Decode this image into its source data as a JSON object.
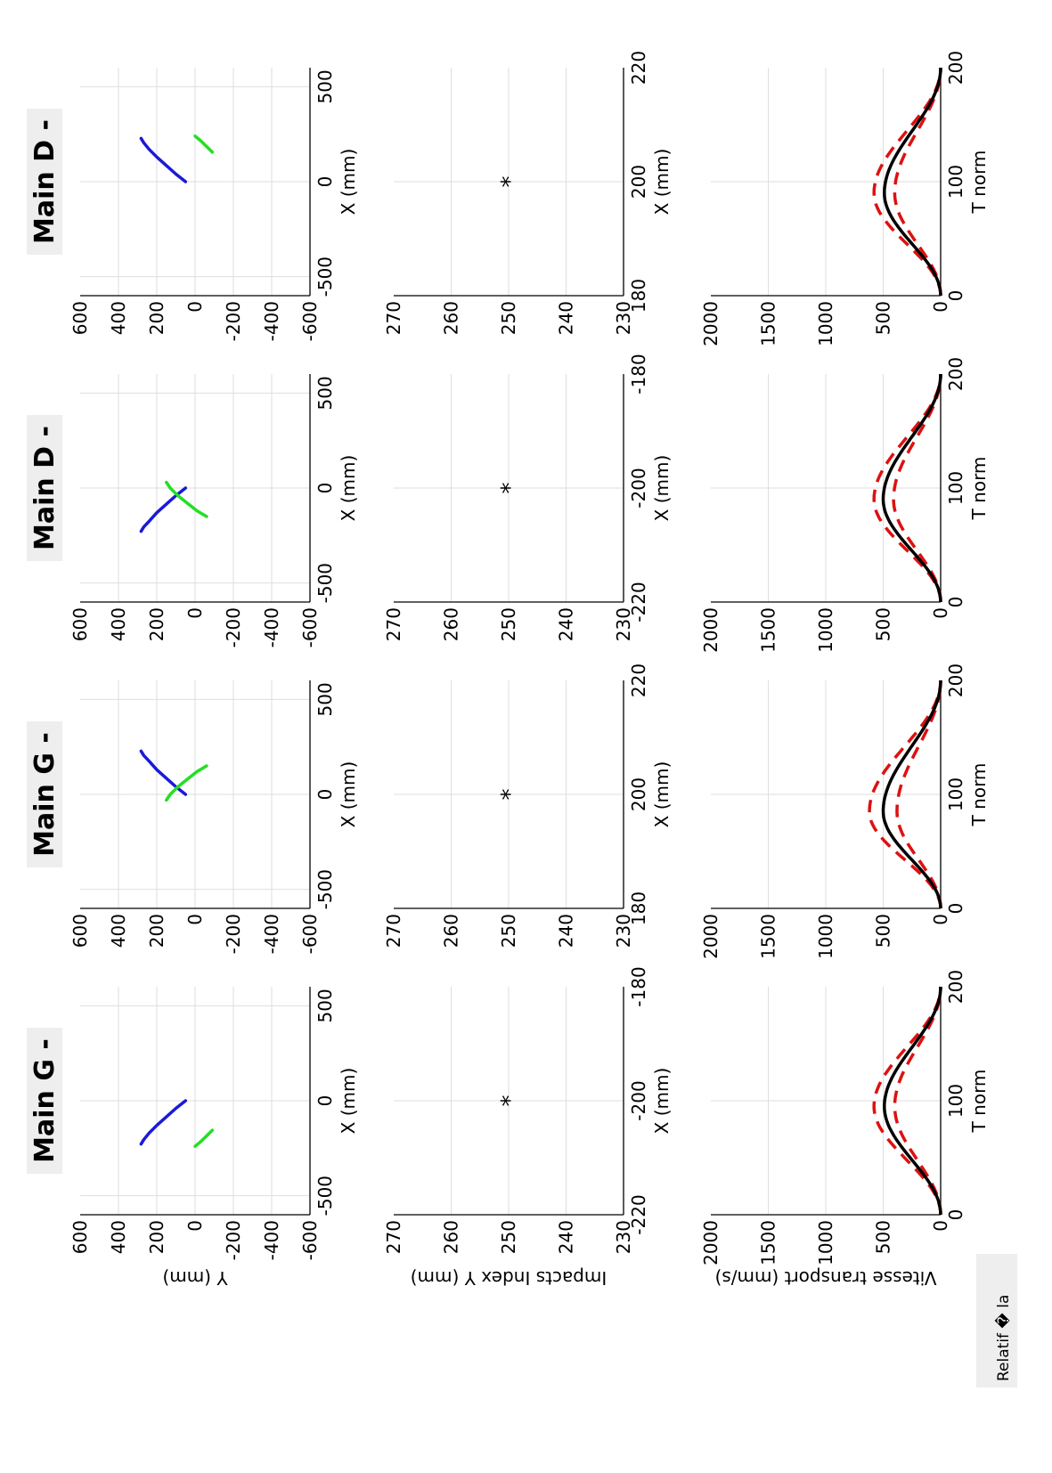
{
  "figure": {
    "columns": [
      {
        "title": "Main G -"
      },
      {
        "title": "Main G -"
      },
      {
        "title": "Main D -"
      },
      {
        "title": "Main D -"
      }
    ],
    "side_label": "Relatif � la"
  },
  "colors": {
    "blue": "#1a1ad6",
    "green": "#22e022",
    "red": "#dd1111",
    "black": "#000000",
    "grid": "#dedede",
    "title_bg": "#eeeeee"
  },
  "chart_data": [
    {
      "type": "line",
      "panel": "trajectory",
      "column": 1,
      "title": "Main G -",
      "xlabel": "X (mm)",
      "ylabel": "Y (mm)",
      "xlim": [
        -600,
        600
      ],
      "ylim": [
        -600,
        600
      ],
      "xticks": [
        -500,
        0,
        500
      ],
      "yticks": [
        600,
        400,
        200,
        0,
        -200,
        -400,
        -600
      ],
      "grid": true,
      "series": [
        {
          "color": "blue",
          "x": [
            0,
            -40,
            -85,
            -130,
            -170,
            -205,
            -228
          ],
          "y": [
            50,
            100,
            150,
            200,
            240,
            268,
            282
          ]
        },
        {
          "color": "green",
          "x": [
            -155,
            -185,
            -215,
            -240
          ],
          "y": [
            -90,
            -60,
            -30,
            0
          ]
        }
      ]
    },
    {
      "type": "line",
      "panel": "trajectory",
      "column": 2,
      "title": "Main G -",
      "xlabel": "X (mm)",
      "xlim": [
        -600,
        600
      ],
      "ylim": [
        -600,
        600
      ],
      "xticks": [
        -500,
        0,
        500
      ],
      "yticks": [
        600,
        400,
        200,
        0,
        -200,
        -400,
        -600
      ],
      "grid": true,
      "series": [
        {
          "color": "blue",
          "x": [
            0,
            40,
            85,
            130,
            175,
            205,
            228
          ],
          "y": [
            50,
            100,
            150,
            200,
            240,
            268,
            282
          ]
        },
        {
          "color": "green",
          "x": [
            -30,
            0,
            40,
            80,
            120,
            150
          ],
          "y": [
            150,
            130,
            90,
            40,
            -10,
            -60
          ]
        }
      ]
    },
    {
      "type": "line",
      "panel": "trajectory",
      "column": 3,
      "title": "Main D -",
      "xlabel": "X (mm)",
      "xlim": [
        -600,
        600
      ],
      "ylim": [
        -600,
        600
      ],
      "xticks": [
        -500,
        0,
        500
      ],
      "yticks": [
        600,
        400,
        200,
        0,
        -200,
        -400,
        -600
      ],
      "grid": true,
      "series": [
        {
          "color": "blue",
          "x": [
            0,
            -40,
            -85,
            -130,
            -175,
            -205,
            -228
          ],
          "y": [
            50,
            100,
            150,
            200,
            240,
            268,
            282
          ]
        },
        {
          "color": "green",
          "x": [
            30,
            0,
            -40,
            -80,
            -120,
            -150
          ],
          "y": [
            150,
            130,
            90,
            40,
            -10,
            -60
          ]
        }
      ]
    },
    {
      "type": "line",
      "panel": "trajectory",
      "column": 4,
      "title": "Main D -",
      "xlabel": "X (mm)",
      "xlim": [
        -600,
        600
      ],
      "ylim": [
        -600,
        600
      ],
      "xticks": [
        -500,
        0,
        500
      ],
      "yticks": [
        600,
        400,
        200,
        0,
        -200,
        -400,
        -600
      ],
      "grid": true,
      "series": [
        {
          "color": "blue",
          "x": [
            0,
            40,
            85,
            130,
            170,
            205,
            228
          ],
          "y": [
            50,
            100,
            150,
            200,
            240,
            268,
            282
          ]
        },
        {
          "color": "green",
          "x": [
            155,
            185,
            215,
            240
          ],
          "y": [
            -90,
            -60,
            -30,
            0
          ]
        }
      ]
    },
    {
      "type": "scatter",
      "panel": "impacts",
      "column": 1,
      "xlabel": "X (mm)",
      "ylabel": "Impacts Index Y (mm)",
      "xlim": [
        -220,
        -180
      ],
      "ylim": [
        230,
        270
      ],
      "xticks": [
        -220,
        -200,
        -180
      ],
      "yticks": [
        270,
        260,
        250,
        240,
        230
      ],
      "grid": true,
      "points": [
        {
          "x": -200,
          "y": 250
        }
      ],
      "marker": "*"
    },
    {
      "type": "scatter",
      "panel": "impacts",
      "column": 2,
      "xlabel": "X (mm)",
      "xlim": [
        180,
        220
      ],
      "ylim": [
        230,
        270
      ],
      "xticks": [
        180,
        200,
        220
      ],
      "yticks": [
        270,
        260,
        250,
        240,
        230
      ],
      "grid": true,
      "points": [
        {
          "x": 200,
          "y": 250
        }
      ],
      "marker": "*"
    },
    {
      "type": "scatter",
      "panel": "impacts",
      "column": 3,
      "xlabel": "X (mm)",
      "xlim": [
        -220,
        -180
      ],
      "ylim": [
        230,
        270
      ],
      "xticks": [
        -220,
        -200,
        -180
      ],
      "yticks": [
        270,
        260,
        250,
        240,
        230
      ],
      "grid": true,
      "points": [
        {
          "x": -200,
          "y": 250
        }
      ],
      "marker": "*"
    },
    {
      "type": "scatter",
      "panel": "impacts",
      "column": 4,
      "xlabel": "X (mm)",
      "xlim": [
        180,
        220
      ],
      "ylim": [
        230,
        270
      ],
      "xticks": [
        180,
        200,
        220
      ],
      "yticks": [
        270,
        260,
        250,
        240,
        230
      ],
      "grid": true,
      "points": [
        {
          "x": 200,
          "y": 250
        }
      ],
      "marker": "*"
    },
    {
      "type": "line",
      "panel": "velocity",
      "column": 1,
      "xlabel": "T norm",
      "ylabel": "Vitesse transport (mm/s)",
      "xlim": [
        0,
        200
      ],
      "ylim": [
        0,
        2000
      ],
      "xticks": [
        0,
        100,
        200
      ],
      "yticks": [
        2000,
        1500,
        1000,
        500,
        0
      ],
      "grid": true,
      "mean_peak": 490,
      "upper_peak": 580,
      "lower_peak": 400,
      "mean_peak_t": 95
    },
    {
      "type": "line",
      "panel": "velocity",
      "column": 2,
      "xlabel": "T norm",
      "xlim": [
        0,
        200
      ],
      "ylim": [
        0,
        2000
      ],
      "xticks": [
        0,
        100,
        200
      ],
      "yticks": [
        2000,
        1500,
        1000,
        500,
        0
      ],
      "grid": true,
      "mean_peak": 500,
      "upper_peak": 620,
      "lower_peak": 380,
      "mean_peak_t": 85
    },
    {
      "type": "line",
      "panel": "velocity",
      "column": 3,
      "xlabel": "T norm",
      "xlim": [
        0,
        200
      ],
      "ylim": [
        0,
        2000
      ],
      "xticks": [
        0,
        100,
        200
      ],
      "yticks": [
        2000,
        1500,
        1000,
        500,
        0
      ],
      "grid": true,
      "mean_peak": 500,
      "upper_peak": 580,
      "lower_peak": 410,
      "mean_peak_t": 90
    },
    {
      "type": "line",
      "panel": "velocity",
      "column": 4,
      "xlabel": "T norm",
      "xlim": [
        0,
        200
      ],
      "ylim": [
        0,
        2000
      ],
      "xticks": [
        0,
        100,
        200
      ],
      "yticks": [
        2000,
        1500,
        1000,
        500,
        0
      ],
      "grid": true,
      "mean_peak": 490,
      "upper_peak": 580,
      "lower_peak": 400,
      "mean_peak_t": 90
    }
  ]
}
